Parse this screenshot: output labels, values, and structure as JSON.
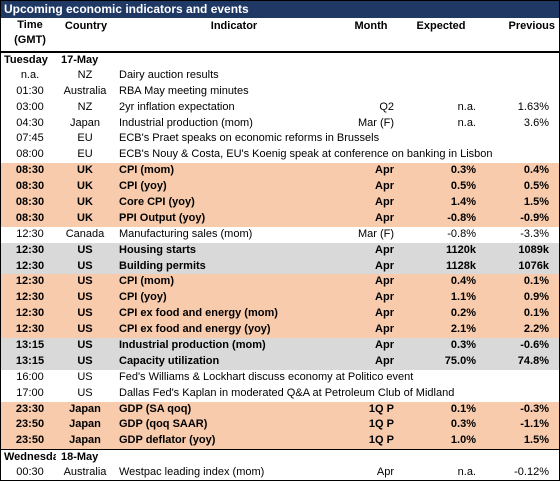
{
  "title": "Upcoming economic indicators and events",
  "header": {
    "time": "Time\n(GMT)",
    "country": "Country",
    "indicator": "Indicator",
    "month": "Month",
    "expected": "Expected",
    "previous": "Previous"
  },
  "rows": [
    {
      "style": "section",
      "day": "Tuesday",
      "date": "17-May"
    },
    {
      "style": "plain",
      "time": "n.a.",
      "country": "NZ",
      "indicator": "Dairy auction results"
    },
    {
      "style": "plain",
      "time": "01:30",
      "country": "Australia",
      "indicator": "RBA May meeting minutes"
    },
    {
      "style": "plain",
      "time": "03:00",
      "country": "NZ",
      "indicator": "2yr inflation expectation",
      "month": "Q2",
      "expected": "n.a.",
      "previous": "1.63%"
    },
    {
      "style": "plain",
      "time": "04:30",
      "country": "Japan",
      "indicator": "Industrial production (mom)",
      "month": "Mar (F)",
      "expected": "n.a.",
      "previous": "3.6%"
    },
    {
      "style": "plain",
      "time": "07:45",
      "country": "EU",
      "indicator": "ECB's Praet speaks on economic reforms in Brussels"
    },
    {
      "style": "plain",
      "time": "08:00",
      "country": "EU",
      "indicator": "ECB's Nouy & Costa, EU's Koenig speak at conference on banking in Lisbon"
    },
    {
      "style": "orange",
      "time": "08:30",
      "country": "UK",
      "indicator": "CPI (mom)",
      "month": "Apr",
      "expected": "0.3%",
      "previous": "0.4%"
    },
    {
      "style": "orange",
      "time": "08:30",
      "country": "UK",
      "indicator": "CPI  (yoy)",
      "month": "Apr",
      "expected": "0.5%",
      "previous": "0.5%"
    },
    {
      "style": "orange",
      "time": "08:30",
      "country": "UK",
      "indicator": "Core CPI (yoy)",
      "month": "Apr",
      "expected": "1.4%",
      "previous": "1.5%"
    },
    {
      "style": "orange",
      "time": "08:30",
      "country": "UK",
      "indicator": "PPI Output (yoy)",
      "month": "Apr",
      "expected": "-0.8%",
      "previous": "-0.9%"
    },
    {
      "style": "plain",
      "time": "12:30",
      "country": "Canada",
      "indicator": "Manufacturing sales (mom)",
      "month": "Mar (F)",
      "expected": "-0.8%",
      "previous": "-3.3%"
    },
    {
      "style": "gray",
      "time": "12:30",
      "country": "US",
      "indicator": "Housing starts",
      "month": "Apr",
      "expected": "1120k",
      "previous": "1089k"
    },
    {
      "style": "gray",
      "time": "12:30",
      "country": "US",
      "indicator": "Building permits",
      "month": "Apr",
      "expected": "1128k",
      "previous": "1076k"
    },
    {
      "style": "orange",
      "time": "12:30",
      "country": "US",
      "indicator": "CPI (mom)",
      "month": "Apr",
      "expected": "0.4%",
      "previous": "0.1%"
    },
    {
      "style": "orange",
      "time": "12:30",
      "country": "US",
      "indicator": "CPI (yoy)",
      "month": "Apr",
      "expected": "1.1%",
      "previous": "0.9%"
    },
    {
      "style": "orange",
      "time": "12:30",
      "country": "US",
      "indicator": "CPI ex food and energy (mom)",
      "month": "Apr",
      "expected": "0.2%",
      "previous": "0.1%"
    },
    {
      "style": "orange",
      "time": "12:30",
      "country": "US",
      "indicator": "CPI ex food and energy (yoy)",
      "month": "Apr",
      "expected": "2.1%",
      "previous": "2.2%"
    },
    {
      "style": "gray",
      "time": "13:15",
      "country": "US",
      "indicator": "Industrial production (mom)",
      "month": "Apr",
      "expected": "0.3%",
      "previous": "-0.6%"
    },
    {
      "style": "gray",
      "time": "13:15",
      "country": "US",
      "indicator": "Capacity utilization",
      "month": "Apr",
      "expected": "75.0%",
      "previous": "74.8%"
    },
    {
      "style": "plain",
      "time": "16:00",
      "country": "US",
      "indicator": "Fed's Williams & Lockhart discuss economy at Politico event"
    },
    {
      "style": "plain",
      "time": "17:00",
      "country": "US",
      "indicator": "Dallas Fed's Kaplan in moderated Q&A at Petroleum Club of Midland"
    },
    {
      "style": "orange",
      "time": "23:30",
      "country": "Japan",
      "indicator": "GDP (SA qoq)",
      "month": "1Q P",
      "expected": "0.1%",
      "previous": "-0.3%"
    },
    {
      "style": "orange",
      "time": "23:50",
      "country": "Japan",
      "indicator": "GDP (qoq SAAR)",
      "month": "1Q P",
      "expected": "0.3%",
      "previous": "-1.1%"
    },
    {
      "style": "orange",
      "time": "23:50",
      "country": "Japan",
      "indicator": "GDP deflator (yoy)",
      "month": "1Q P",
      "expected": "1.0%",
      "previous": "1.5%"
    },
    {
      "style": "section",
      "day": "Wednesday",
      "date": "18-May"
    },
    {
      "style": "plain",
      "time": "00:30",
      "country": "Australia",
      "indicator": "Westpac leading index (mom)",
      "month": "Apr",
      "expected": "n.a.",
      "previous": "-0.12%"
    }
  ]
}
